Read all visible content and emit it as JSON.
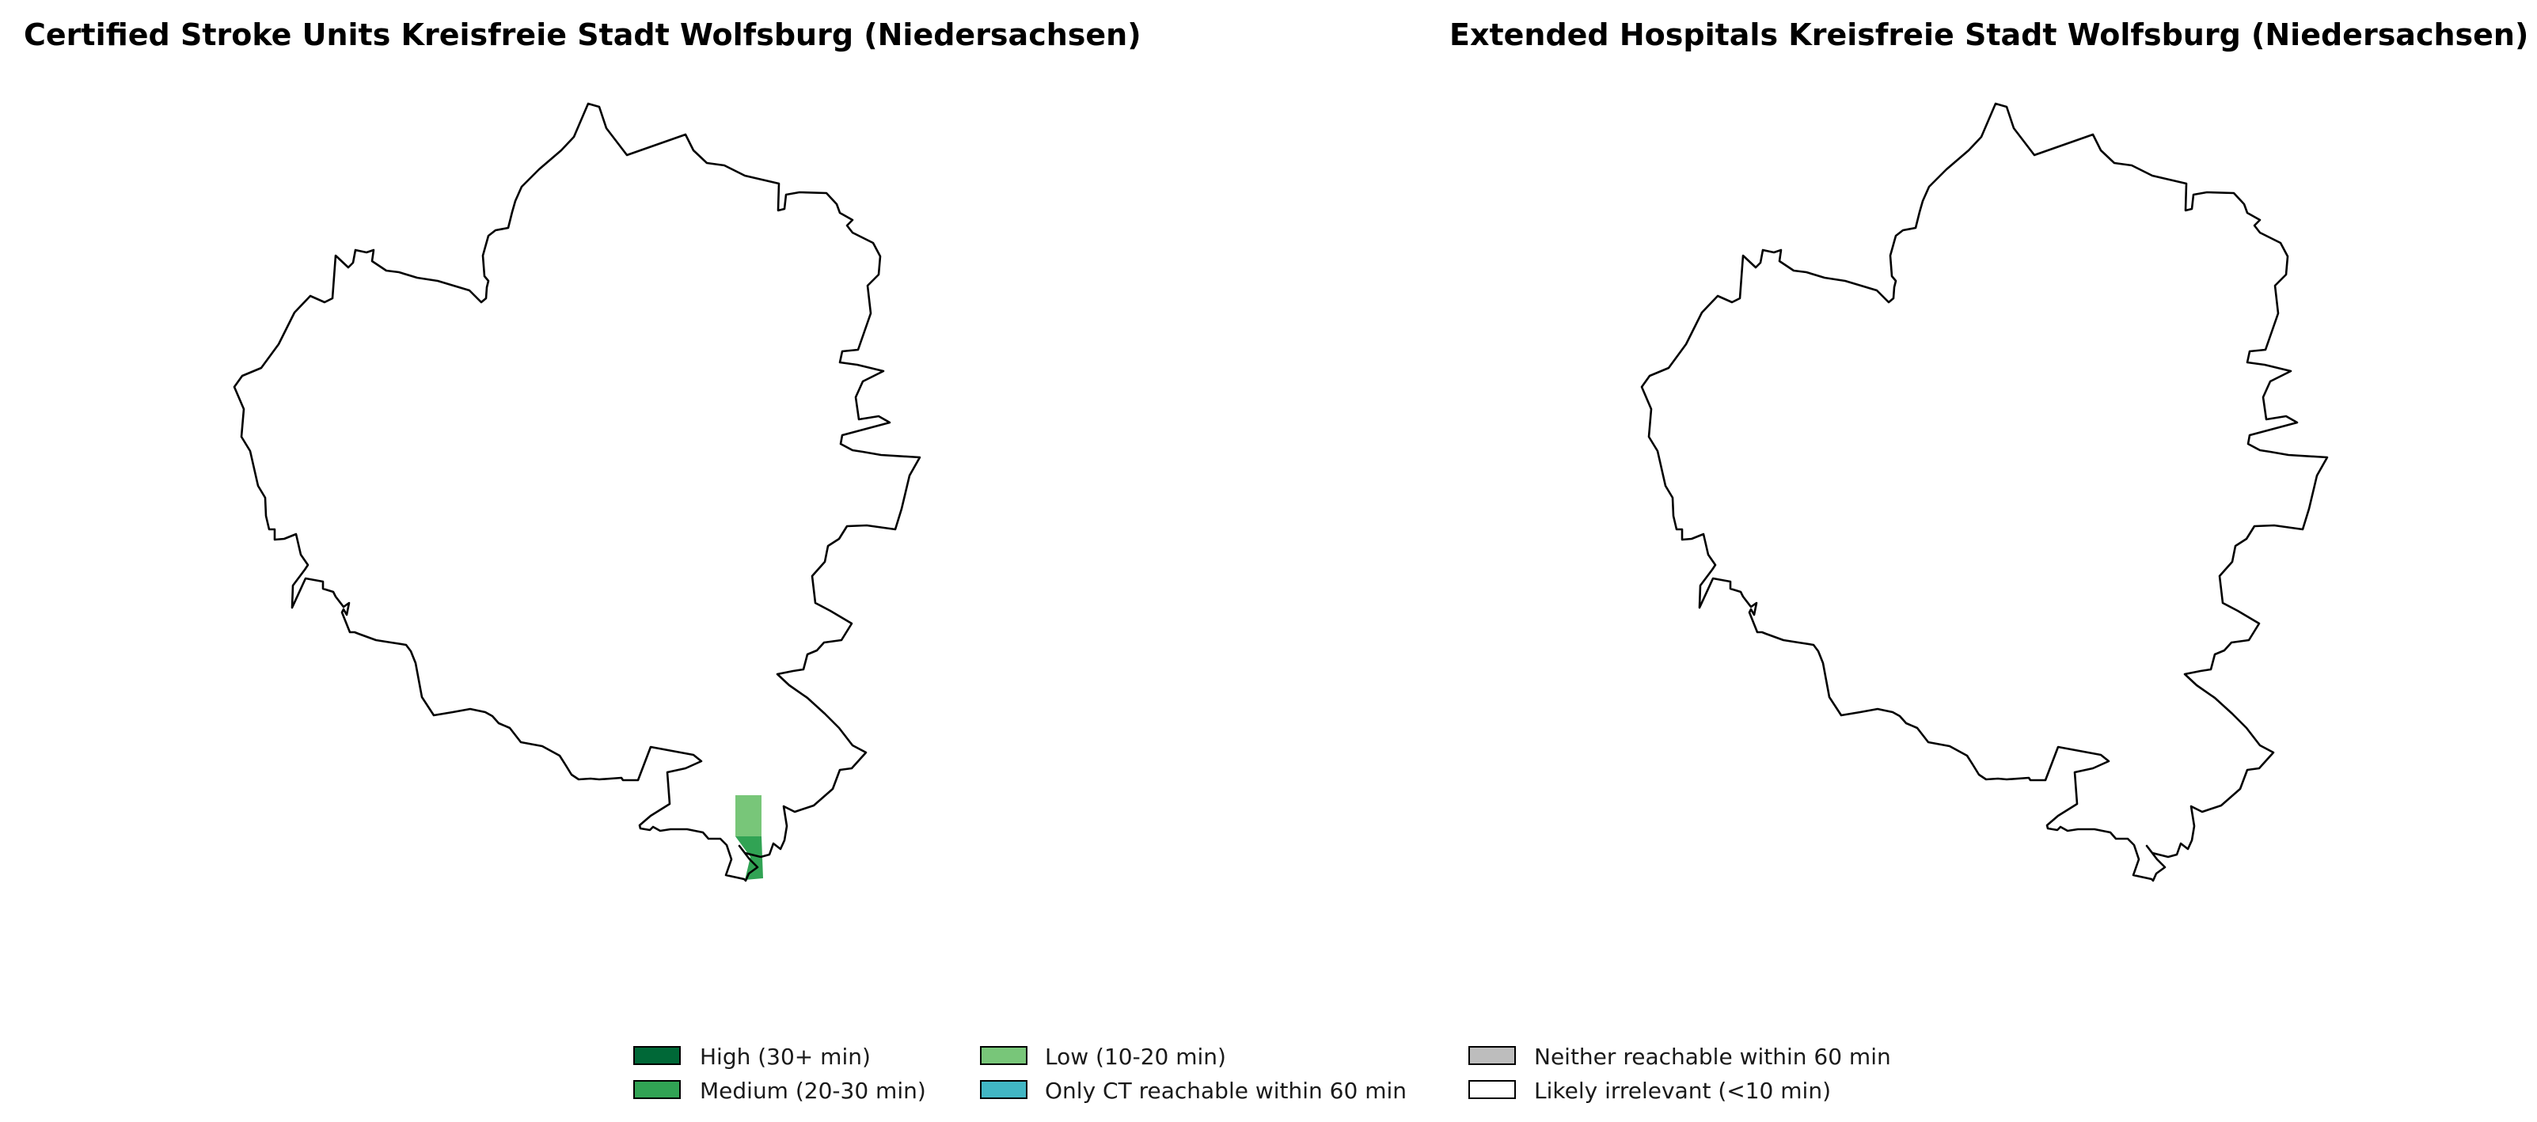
{
  "maps": [
    {
      "title": "Certified Stroke Units Kreisfreie Stadt Wolfsburg (Niedersachsen)",
      "region": "Kreisfreie Stadt Wolfsburg",
      "highlighted_category": "Low (10-20 min)"
    },
    {
      "title": "Extended Hospitals Kreisfreie Stadt Wolfsburg (Niedersachsen)",
      "region": "Kreisfreie Stadt Wolfsburg",
      "highlighted_category": ""
    }
  ],
  "legend": {
    "items": [
      {
        "label": "High (30+ min)",
        "color": "#006837"
      },
      {
        "label": "Medium (20-30 min)",
        "color": "#31a354"
      },
      {
        "label": "Low (10-20 min)",
        "color": "#78c679"
      },
      {
        "label": "Only CT reachable within 60 min",
        "color": "#41b6c4"
      },
      {
        "label": "Neither reachable within 60 min",
        "color": "#bdbdbd"
      },
      {
        "label": "Likely irrelevant (<10 min)",
        "color": "#ffffff"
      }
    ]
  }
}
